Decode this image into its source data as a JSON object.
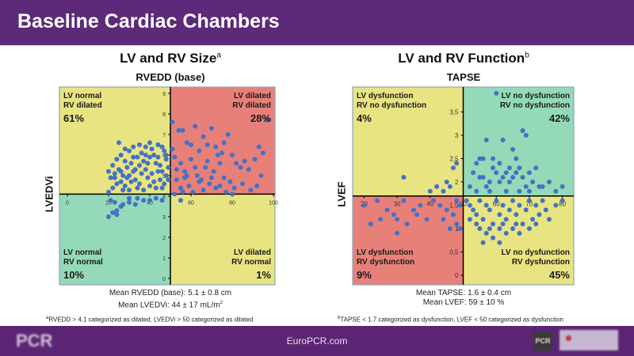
{
  "header": {
    "title": "Baseline Cardiac Chambers"
  },
  "footer": {
    "url": "EuroPCR.com",
    "logo_left": "PCR",
    "logo_right": "PCR",
    "partner_logo": "partner-logo"
  },
  "left_panel": {
    "title": "LV and RV Size",
    "title_sup": "a",
    "x_axis_title": "RVEDD (base)",
    "y_axis_title": "LVEDVi",
    "caption_line1": "Mean RVEDD (base): 5.1 ± 0.8 cm",
    "caption_line2_prefix": "Mean LVEDVi: 44 ± 17 mL/m",
    "caption_line2_sup": "2",
    "footnote_sup": "a",
    "footnote": "RVEDD > 4.1 categorized as dilated, LVEDVi > 50 categorized as dilated"
  },
  "right_panel": {
    "title": "LV and RV Function",
    "title_sup": "b",
    "x_axis_title": "TAPSE",
    "y_axis_title": "LVEF",
    "caption_line1": "Mean TAPSE: 1.6 ± 0.4 cm",
    "caption_line2": "Mean LVEF: 59 ± 10 %",
    "footnote_sup": "b",
    "footnote": "TAPSE < 1.7 categorized as dysfunction, LVEF < 50 categorized as dysfunction"
  },
  "colors": {
    "yellow": "#e8e482",
    "red": "#e8807a",
    "green": "#94dab8",
    "point": "#4472c4",
    "header": "#5c2a78"
  },
  "chart_data": [
    {
      "type": "scatter",
      "title": "LV and RV Size",
      "xlabel": "LVEDVi",
      "ylabel": "RVEDD (base)",
      "xlim": [
        0,
        100
      ],
      "ylim": [
        0,
        9
      ],
      "x_ticks": [
        "0",
        "20",
        "40",
        "60",
        "80",
        "100"
      ],
      "y_ticks": [
        "0",
        "1",
        "2",
        "3",
        "4",
        "5",
        "6",
        "7",
        "8",
        "9"
      ],
      "x_cut": 50,
      "y_cut": 4.1,
      "quadrants": [
        {
          "position": "top-left",
          "line1": "LV normal",
          "line2": "RV dilated",
          "percent": "61%",
          "color": "yellow"
        },
        {
          "position": "top-right",
          "line1": "LV dilated",
          "line2": "RV dilated",
          "percent": "28%",
          "color": "red"
        },
        {
          "position": "bottom-left",
          "line1": "LV normal",
          "line2": "RV normal",
          "percent": "10%",
          "color": "green"
        },
        {
          "position": "bottom-right",
          "line1": "LV dilated",
          "line2": "RV normal",
          "percent": "1%",
          "color": "yellow"
        }
      ],
      "points": [
        [
          20,
          3.0
        ],
        [
          22,
          3.2
        ],
        [
          24,
          3.1
        ],
        [
          26,
          3.5
        ],
        [
          24,
          3.3
        ],
        [
          27,
          3.6
        ],
        [
          30,
          3.7
        ],
        [
          33,
          3.6
        ],
        [
          37,
          3.8
        ],
        [
          30,
          3.9
        ],
        [
          21,
          3.8
        ],
        [
          23,
          3.7
        ],
        [
          40,
          3.8
        ],
        [
          43,
          3.9
        ],
        [
          46,
          3.8
        ],
        [
          34,
          3.9
        ],
        [
          20,
          4.2
        ],
        [
          22,
          4.4
        ],
        [
          24,
          4.6
        ],
        [
          21,
          4.9
        ],
        [
          23,
          5.1
        ],
        [
          25,
          5.3
        ],
        [
          27,
          5.0
        ],
        [
          26,
          4.7
        ],
        [
          28,
          4.5
        ],
        [
          30,
          4.3
        ],
        [
          29,
          5.4
        ],
        [
          31,
          5.6
        ],
        [
          32,
          5.2
        ],
        [
          33,
          4.8
        ],
        [
          35,
          4.6
        ],
        [
          34,
          5.9
        ],
        [
          36,
          6.1
        ],
        [
          37,
          5.7
        ],
        [
          38,
          5.3
        ],
        [
          39,
          4.9
        ],
        [
          40,
          4.5
        ],
        [
          41,
          6.3
        ],
        [
          42,
          6.0
        ],
        [
          43,
          5.6
        ],
        [
          44,
          5.2
        ],
        [
          45,
          4.8
        ],
        [
          46,
          4.4
        ],
        [
          47,
          6.2
        ],
        [
          48,
          5.8
        ],
        [
          49,
          5.4
        ],
        [
          48,
          5.0
        ],
        [
          47,
          4.6
        ],
        [
          22,
          5.5
        ],
        [
          24,
          5.8
        ],
        [
          26,
          6.0
        ],
        [
          28,
          5.7
        ],
        [
          30,
          6.2
        ],
        [
          32,
          6.4
        ],
        [
          35,
          6.5
        ],
        [
          38,
          6.4
        ],
        [
          40,
          6.6
        ],
        [
          44,
          6.5
        ],
        [
          46,
          6.4
        ],
        [
          25,
          6.6
        ],
        [
          29,
          4.9
        ],
        [
          31,
          4.7
        ],
        [
          33,
          5.3
        ],
        [
          36,
          5.1
        ],
        [
          39,
          5.6
        ],
        [
          42,
          4.7
        ],
        [
          44,
          5.9
        ],
        [
          45,
          5.5
        ],
        [
          37,
          4.3
        ],
        [
          35,
          5.5
        ],
        [
          27,
          4.3
        ],
        [
          23,
          4.9
        ],
        [
          41,
          5.1
        ],
        [
          43,
          4.4
        ],
        [
          49,
          4.8
        ],
        [
          20,
          5.2
        ],
        [
          26,
          5.2
        ],
        [
          32,
          5.9
        ],
        [
          34,
          4.4
        ],
        [
          38,
          6.0
        ],
        [
          30,
          5.0
        ],
        [
          28,
          6.3
        ],
        [
          40,
          5.9
        ],
        [
          46,
          5.2
        ],
        [
          48,
          6.0
        ],
        [
          51,
          7.6
        ],
        [
          54,
          7.2
        ],
        [
          56,
          7.2
        ],
        [
          58,
          6.6
        ],
        [
          62,
          7.4
        ],
        [
          66,
          6.9
        ],
        [
          68,
          6.5
        ],
        [
          70,
          7.3
        ],
        [
          73,
          6.0
        ],
        [
          75,
          6.1
        ],
        [
          78,
          7.0
        ],
        [
          82,
          5.6
        ],
        [
          84,
          5.4
        ],
        [
          88,
          5.3
        ],
        [
          93,
          6.4
        ],
        [
          95,
          6.1
        ],
        [
          97,
          7.7
        ],
        [
          52,
          5.9
        ],
        [
          55,
          5.6
        ],
        [
          57,
          5.2
        ],
        [
          60,
          5.8
        ],
        [
          63,
          5.0
        ],
        [
          65,
          4.8
        ],
        [
          67,
          5.4
        ],
        [
          69,
          4.6
        ],
        [
          71,
          5.2
        ],
        [
          74,
          4.5
        ],
        [
          76,
          4.9
        ],
        [
          79,
          4.7
        ],
        [
          81,
          4.4
        ],
        [
          85,
          4.6
        ],
        [
          89,
          4.3
        ],
        [
          92,
          4.5
        ],
        [
          94,
          5.0
        ],
        [
          53,
          4.8
        ],
        [
          55,
          4.4
        ],
        [
          57,
          4.9
        ],
        [
          59,
          4.5
        ],
        [
          61,
          4.2
        ],
        [
          64,
          4.7
        ],
        [
          66,
          4.3
        ],
        [
          70,
          4.9
        ],
        [
          72,
          4.4
        ],
        [
          77,
          4.2
        ],
        [
          53,
          5.3
        ],
        [
          58,
          5.0
        ],
        [
          62,
          5.4
        ],
        [
          68,
          5.7
        ],
        [
          72,
          6.4
        ],
        [
          76,
          6.6
        ],
        [
          80,
          6.0
        ],
        [
          86,
          5.7
        ],
        [
          91,
          5.8
        ],
        [
          51,
          6.3
        ],
        [
          60,
          6.5
        ],
        [
          64,
          6.2
        ],
        [
          74,
          5.6
        ],
        [
          56,
          4.2
        ],
        [
          80,
          4.1
        ],
        [
          52,
          4.1
        ],
        [
          55,
          3.8
        ]
      ]
    },
    {
      "type": "scatter",
      "title": "LV and RV Function",
      "xlabel": "LVEF",
      "ylabel": "TAPSE",
      "xlim": [
        18,
        82
      ],
      "ylim": [
        0,
        4
      ],
      "x_ticks": [
        "20",
        "30",
        "40",
        "50",
        "60",
        "70",
        "80"
      ],
      "y_ticks": [
        "0",
        "0,5",
        "1",
        "1,5",
        "2",
        "2,5",
        "3",
        "3,5"
      ],
      "x_cut": 50,
      "y_cut": 1.7,
      "quadrants": [
        {
          "position": "top-left",
          "line1": "LV dysfunction",
          "line2": "RV no dysfunction",
          "percent": "4%",
          "color": "yellow"
        },
        {
          "position": "top-right",
          "line1": "LV no dysfunction",
          "line2": "RV no dysfunction",
          "percent": "42%",
          "color": "green"
        },
        {
          "position": "bottom-left",
          "line1": "LV dysfunction",
          "line2": "RV dysfunction",
          "percent": "9%",
          "color": "red"
        },
        {
          "position": "bottom-right",
          "line1": "LV no dysfunction",
          "line2": "RV dysfunction",
          "percent": "45%",
          "color": "yellow"
        }
      ],
      "points": [
        [
          32,
          2.1
        ],
        [
          42,
          1.9
        ],
        [
          44,
          1.8
        ],
        [
          45,
          2.0
        ],
        [
          48,
          2.4
        ],
        [
          47,
          2.3
        ],
        [
          46,
          1.9
        ],
        [
          40,
          1.8
        ],
        [
          20,
          1.5
        ],
        [
          24,
          1.6
        ],
        [
          27,
          1.4
        ],
        [
          29,
          1.3
        ],
        [
          30,
          1.2
        ],
        [
          32,
          1.6
        ],
        [
          35,
          1.4
        ],
        [
          37,
          1.5
        ],
        [
          39,
          1.2
        ],
        [
          41,
          1.6
        ],
        [
          43,
          1.5
        ],
        [
          45,
          1.4
        ],
        [
          47,
          1.3
        ],
        [
          48,
          1.6
        ],
        [
          49,
          1.5
        ],
        [
          22,
          1.1
        ],
        [
          25,
          1.2
        ],
        [
          33,
          1.1
        ],
        [
          36,
          1.3
        ],
        [
          48,
          1.1
        ],
        [
          49,
          1.0
        ],
        [
          30,
          0.9
        ],
        [
          44,
          1.2
        ],
        [
          46,
          1.0
        ],
        [
          52,
          1.9
        ],
        [
          53,
          2.2
        ],
        [
          54,
          2.4
        ],
        [
          55,
          2.5
        ],
        [
          56,
          2.1
        ],
        [
          57,
          1.9
        ],
        [
          58,
          2.0
        ],
        [
          59,
          2.3
        ],
        [
          60,
          2.2
        ],
        [
          61,
          2.4
        ],
        [
          62,
          2.1
        ],
        [
          63,
          1.8
        ],
        [
          64,
          2.0
        ],
        [
          65,
          2.7
        ],
        [
          66,
          2.5
        ],
        [
          67,
          2.3
        ],
        [
          68,
          2.1
        ],
        [
          69,
          1.9
        ],
        [
          70,
          2.2
        ],
        [
          71,
          2.0
        ],
        [
          72,
          2.3
        ],
        [
          74,
          1.9
        ],
        [
          76,
          2.0
        ],
        [
          78,
          1.8
        ],
        [
          80,
          1.9
        ],
        [
          57,
          2.9
        ],
        [
          62,
          2.9
        ],
        [
          68,
          3.1
        ],
        [
          69,
          3.0
        ],
        [
          60,
          3.9
        ],
        [
          55,
          2.1
        ],
        [
          58,
          1.8
        ],
        [
          61,
          2.0
        ],
        [
          64,
          2.3
        ],
        [
          66,
          2.2
        ],
        [
          67,
          1.8
        ],
        [
          70,
          1.8
        ],
        [
          73,
          1.9
        ],
        [
          54,
          1.8
        ],
        [
          56,
          2.5
        ],
        [
          59,
          2.5
        ],
        [
          63,
          2.2
        ],
        [
          65,
          2.1
        ],
        [
          51,
          1.6
        ],
        [
          52,
          1.5
        ],
        [
          53,
          1.4
        ],
        [
          54,
          1.3
        ],
        [
          55,
          1.6
        ],
        [
          56,
          1.2
        ],
        [
          57,
          1.5
        ],
        [
          58,
          1.4
        ],
        [
          59,
          1.1
        ],
        [
          60,
          1.6
        ],
        [
          61,
          1.3
        ],
        [
          62,
          1.5
        ],
        [
          63,
          1.2
        ],
        [
          64,
          1.4
        ],
        [
          65,
          1.6
        ],
        [
          66,
          1.3
        ],
        [
          67,
          1.5
        ],
        [
          68,
          1.1
        ],
        [
          69,
          1.4
        ],
        [
          70,
          1.6
        ],
        [
          71,
          1.2
        ],
        [
          72,
          1.5
        ],
        [
          73,
          1.3
        ],
        [
          74,
          1.6
        ],
        [
          75,
          1.4
        ],
        [
          76,
          1.2
        ],
        [
          78,
          1.5
        ],
        [
          80,
          1.6
        ],
        [
          55,
          1.0
        ],
        [
          57,
          0.9
        ],
        [
          59,
          0.8
        ],
        [
          61,
          1.0
        ],
        [
          63,
          0.9
        ],
        [
          65,
          1.0
        ],
        [
          67,
          0.9
        ],
        [
          56,
          0.7
        ],
        [
          61,
          0.7
        ],
        [
          52,
          1.2
        ],
        [
          54,
          1.1
        ],
        [
          58,
          1.0
        ],
        [
          62,
          1.1
        ],
        [
          66,
          1.1
        ],
        [
          70,
          1.0
        ],
        [
          72,
          1.1
        ]
      ]
    }
  ]
}
